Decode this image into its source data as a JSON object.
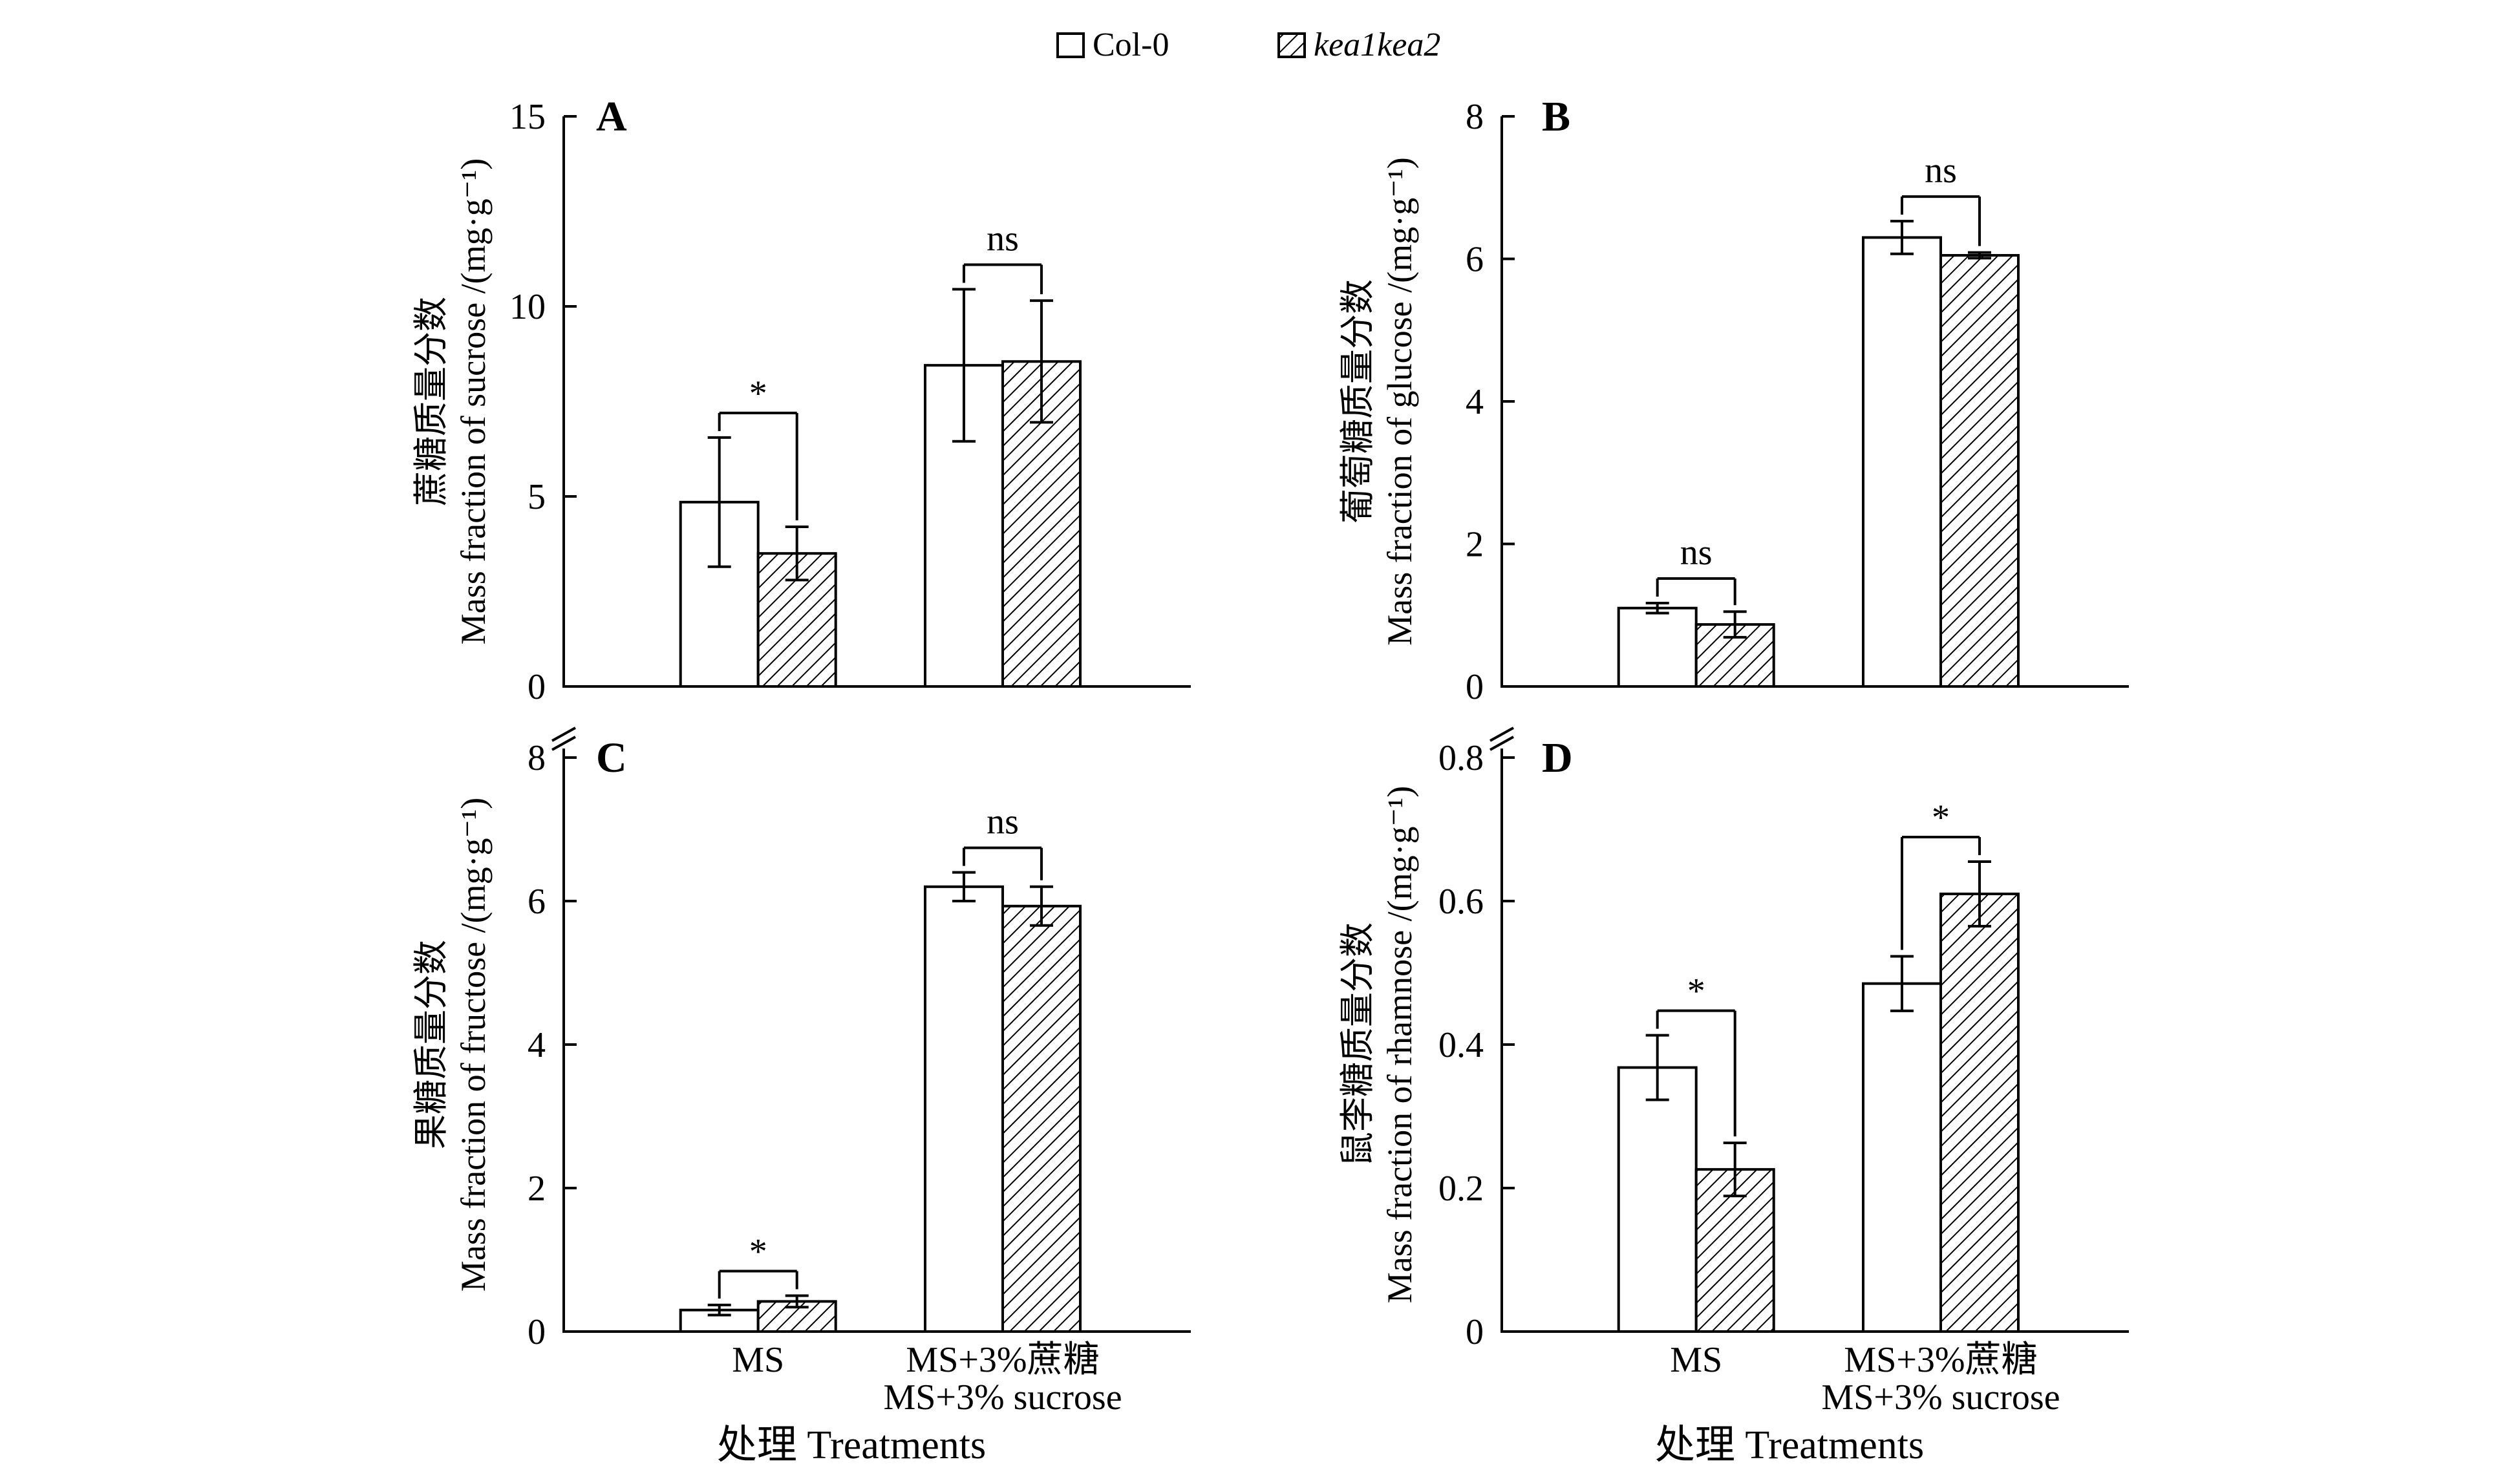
{
  "legend": [
    {
      "label": "Col-0",
      "style": "open"
    },
    {
      "label": "kea1kea2",
      "style": "hatched",
      "italic": true
    }
  ],
  "chart_data": [
    {
      "type": "bar",
      "panel": "A",
      "ylabel_cn": "蔗糖质量分数",
      "ylabel_en": "Mass fraction of sucrose /(mg·g⁻¹)",
      "ylim": [
        0,
        15
      ],
      "yticks": [
        "0",
        "5",
        "10",
        "15"
      ],
      "categories": [
        "MS",
        "MS+3% sucrose"
      ],
      "series": [
        {
          "name": "Col-0",
          "values": [
            4.85,
            8.45
          ],
          "errors": [
            1.7,
            2.0
          ]
        },
        {
          "name": "kea1kea2",
          "values": [
            3.5,
            8.55
          ],
          "errors": [
            0.7,
            1.6
          ]
        }
      ],
      "significance": [
        "*",
        "ns"
      ]
    },
    {
      "type": "bar",
      "panel": "B",
      "ylabel_cn": "葡萄糖质量分数",
      "ylabel_en": "Mass fraction of glucose /(mg·g⁻¹)",
      "ylim": [
        0,
        8
      ],
      "yticks": [
        "0",
        "2",
        "4",
        "6",
        "8"
      ],
      "categories": [
        "MS",
        "MS+3% sucrose"
      ],
      "series": [
        {
          "name": "Col-0",
          "values": [
            1.1,
            6.3
          ],
          "errors": [
            0.07,
            0.23
          ]
        },
        {
          "name": "kea1kea2",
          "values": [
            0.87,
            6.05
          ],
          "errors": [
            0.18,
            0.04
          ]
        }
      ],
      "significance": [
        "ns",
        "ns"
      ]
    },
    {
      "type": "bar",
      "panel": "C",
      "ylabel_cn": "果糖质量分数",
      "ylabel_en": "Mass fraction of fructose /(mg·g⁻¹)",
      "ylim": [
        0,
        8
      ],
      "yticks": [
        "0",
        "2",
        "4",
        "6",
        "8"
      ],
      "categories": [
        "MS",
        "MS+3%蔗糖 / MS+3% sucrose"
      ],
      "category_lines": [
        [
          "MS"
        ],
        [
          "MS+3%蔗糖",
          "MS+3% sucrose"
        ]
      ],
      "xlabel": "处理 Treatments",
      "series": [
        {
          "name": "Col-0",
          "values": [
            0.3,
            6.2
          ],
          "errors": [
            0.07,
            0.2
          ]
        },
        {
          "name": "kea1kea2",
          "values": [
            0.42,
            5.93
          ],
          "errors": [
            0.08,
            0.27
          ]
        }
      ],
      "significance": [
        "*",
        "ns"
      ]
    },
    {
      "type": "bar",
      "panel": "D",
      "ylabel_cn": "鼠李糖质量分数",
      "ylabel_en": "Mass fraction of rhamnose /(mg·g⁻¹)",
      "ylim": [
        0,
        0.8
      ],
      "yticks": [
        "0",
        "0.2",
        "0.4",
        "0.6",
        "0.8"
      ],
      "categories": [
        "MS",
        "MS+3%蔗糖 / MS+3% sucrose"
      ],
      "category_lines": [
        [
          "MS"
        ],
        [
          "MS+3%蔗糖",
          "MS+3% sucrose"
        ]
      ],
      "xlabel": "处理 Treatments",
      "series": [
        {
          "name": "Col-0",
          "values": [
            0.368,
            0.485
          ],
          "errors": [
            0.045,
            0.038
          ]
        },
        {
          "name": "kea1kea2",
          "values": [
            0.226,
            0.61
          ],
          "errors": [
            0.037,
            0.045
          ]
        }
      ],
      "significance": [
        "*",
        "*"
      ]
    }
  ]
}
